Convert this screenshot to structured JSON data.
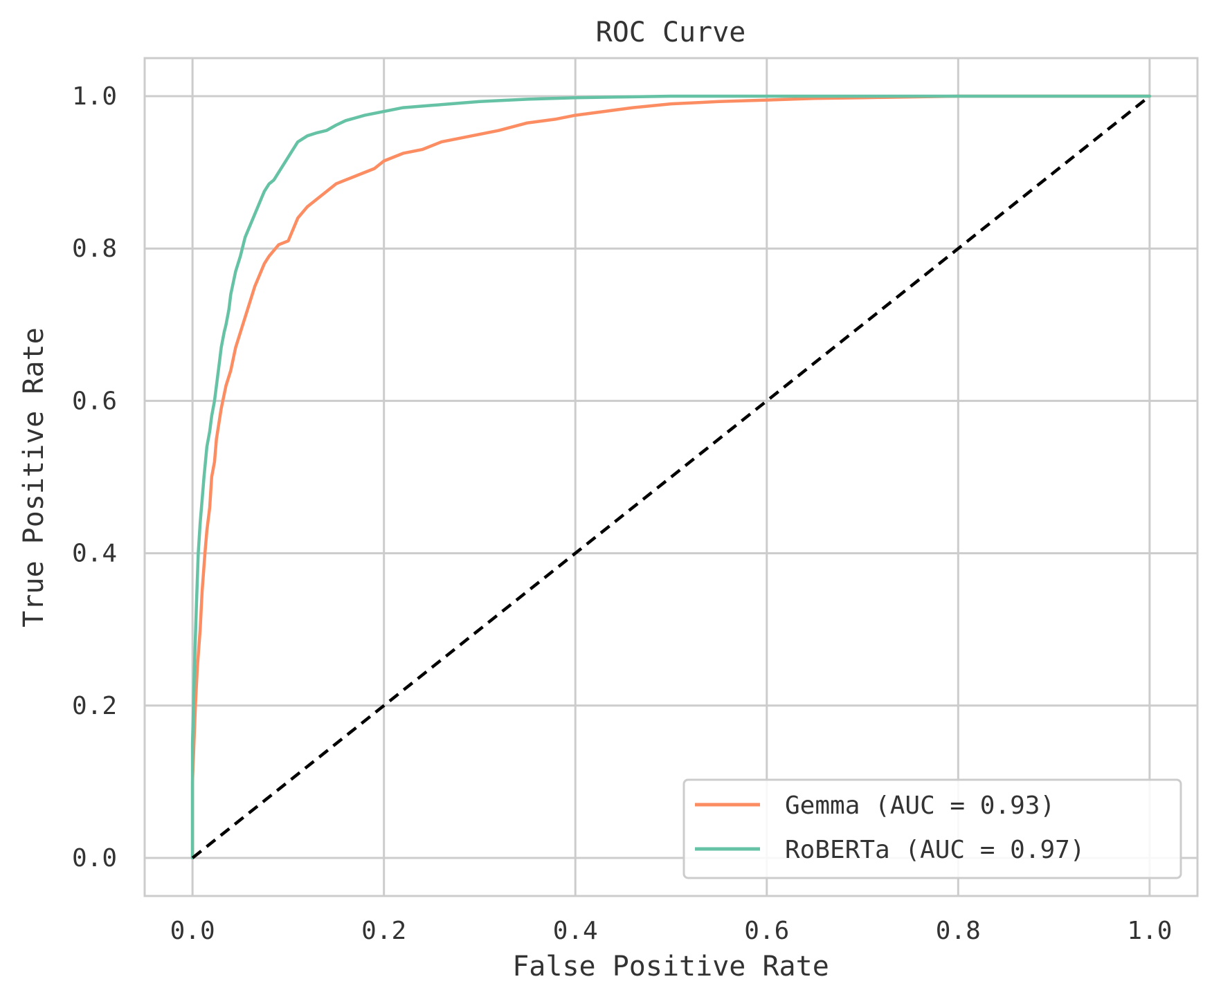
{
  "chart_data": {
    "type": "line",
    "title": "ROC Curve",
    "xlabel": "False Positive Rate",
    "ylabel": "True Positive Rate",
    "xlim": [
      -0.05,
      1.05
    ],
    "ylim": [
      -0.05,
      1.05
    ],
    "xticks": [
      0.0,
      0.2,
      0.4,
      0.6,
      0.8,
      1.0
    ],
    "yticks": [
      0.0,
      0.2,
      0.4,
      0.6,
      0.8,
      1.0
    ],
    "xtick_labels": [
      "0.0",
      "0.2",
      "0.4",
      "0.6",
      "0.8",
      "1.0"
    ],
    "ytick_labels": [
      "0.0",
      "0.2",
      "0.4",
      "0.6",
      "0.8",
      "1.0"
    ],
    "grid": true,
    "legend_position": "bottom-right",
    "series": [
      {
        "name": "Gemma (AUC = 0.93)",
        "color": "#fc8d62",
        "x": [
          0.0,
          0.0,
          0.003,
          0.005,
          0.008,
          0.01,
          0.013,
          0.015,
          0.018,
          0.02,
          0.023,
          0.025,
          0.03,
          0.035,
          0.04,
          0.045,
          0.05,
          0.055,
          0.06,
          0.065,
          0.07,
          0.075,
          0.08,
          0.09,
          0.1,
          0.11,
          0.12,
          0.13,
          0.14,
          0.15,
          0.16,
          0.17,
          0.18,
          0.19,
          0.2,
          0.22,
          0.24,
          0.26,
          0.28,
          0.3,
          0.32,
          0.35,
          0.38,
          0.4,
          0.43,
          0.46,
          0.5,
          0.55,
          0.6,
          0.65,
          0.7,
          0.75,
          0.8,
          1.0
        ],
        "y": [
          0.0,
          0.1,
          0.2,
          0.25,
          0.3,
          0.35,
          0.4,
          0.43,
          0.46,
          0.5,
          0.52,
          0.55,
          0.59,
          0.62,
          0.64,
          0.67,
          0.69,
          0.71,
          0.73,
          0.75,
          0.765,
          0.78,
          0.79,
          0.805,
          0.81,
          0.84,
          0.855,
          0.865,
          0.875,
          0.885,
          0.89,
          0.895,
          0.9,
          0.905,
          0.915,
          0.925,
          0.93,
          0.94,
          0.945,
          0.95,
          0.955,
          0.965,
          0.97,
          0.975,
          0.98,
          0.985,
          0.99,
          0.993,
          0.995,
          0.997,
          0.998,
          0.999,
          1.0,
          1.0
        ]
      },
      {
        "name": "RoBERTa (AUC = 0.97)",
        "color": "#66c2a5",
        "x": [
          0.0,
          0.0,
          0.002,
          0.004,
          0.006,
          0.008,
          0.01,
          0.012,
          0.015,
          0.018,
          0.02,
          0.023,
          0.025,
          0.028,
          0.03,
          0.033,
          0.035,
          0.038,
          0.04,
          0.045,
          0.05,
          0.055,
          0.06,
          0.065,
          0.07,
          0.075,
          0.08,
          0.085,
          0.09,
          0.1,
          0.11,
          0.12,
          0.13,
          0.14,
          0.15,
          0.16,
          0.18,
          0.2,
          0.22,
          0.25,
          0.3,
          0.35,
          0.4,
          0.45,
          0.5,
          0.6,
          0.8,
          1.0
        ],
        "y": [
          0.0,
          0.15,
          0.25,
          0.33,
          0.4,
          0.44,
          0.47,
          0.5,
          0.54,
          0.56,
          0.58,
          0.6,
          0.62,
          0.65,
          0.67,
          0.69,
          0.7,
          0.72,
          0.74,
          0.77,
          0.79,
          0.815,
          0.83,
          0.845,
          0.86,
          0.875,
          0.885,
          0.89,
          0.9,
          0.92,
          0.94,
          0.948,
          0.952,
          0.955,
          0.962,
          0.968,
          0.975,
          0.98,
          0.985,
          0.988,
          0.993,
          0.996,
          0.998,
          0.999,
          1.0,
          1.0,
          1.0,
          1.0
        ]
      }
    ],
    "reference_line": {
      "x": [
        0.0,
        1.0
      ],
      "y": [
        0.0,
        1.0
      ],
      "color": "#000000",
      "style": "dashed"
    }
  }
}
